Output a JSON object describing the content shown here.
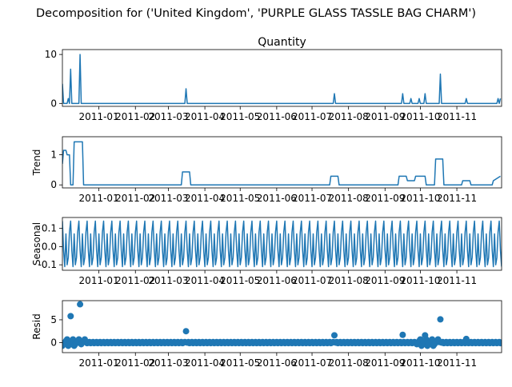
{
  "colors": {
    "series": "#1f77b4",
    "axes": "#000000",
    "background": "#ffffff"
  },
  "chart_data": {
    "type": "line",
    "title": "Decomposition for ('United Kingdom', 'PURPLE GLASS TASSLE BAG CHARM')",
    "x_range": [
      "2010-12-01",
      "2011-12-09"
    ],
    "x_tick_dates": [
      "2011-01-01",
      "2011-02-01",
      "2011-03-01",
      "2011-04-01",
      "2011-05-01",
      "2011-06-01",
      "2011-07-01",
      "2011-08-01",
      "2011-09-01",
      "2011-10-01",
      "2011-11-01"
    ],
    "x_tick_labels": [
      "2011-01",
      "2011-02",
      "2011-03",
      "2011-04",
      "2011-05",
      "2011-06",
      "2011-07",
      "2011-08",
      "2011-09",
      "2011-10",
      "2011-11"
    ],
    "panels": [
      {
        "id": "observed",
        "type": "line",
        "title": "Quantity",
        "ylabel": "",
        "ylim": [
          -0.6,
          11
        ],
        "yticks": [
          0,
          10
        ],
        "baseline": 0,
        "points": [
          [
            "2010-12-01",
            4
          ],
          [
            "2010-12-02",
            0
          ],
          [
            "2010-12-05",
            0
          ],
          [
            "2010-12-06",
            1
          ],
          [
            "2010-12-07",
            0
          ],
          [
            "2010-12-08",
            7
          ],
          [
            "2010-12-09",
            0
          ],
          [
            "2010-12-15",
            0
          ],
          [
            "2010-12-16",
            10
          ],
          [
            "2010-12-17",
            0
          ],
          [
            "2011-03-15",
            0
          ],
          [
            "2011-03-16",
            3
          ],
          [
            "2011-03-17",
            0
          ],
          [
            "2011-07-19",
            0
          ],
          [
            "2011-07-20",
            2
          ],
          [
            "2011-07-21",
            0
          ],
          [
            "2011-09-15",
            0
          ],
          [
            "2011-09-16",
            2
          ],
          [
            "2011-09-17",
            0
          ],
          [
            "2011-09-22",
            0
          ],
          [
            "2011-09-23",
            1
          ],
          [
            "2011-09-24",
            0
          ],
          [
            "2011-09-29",
            0
          ],
          [
            "2011-09-30",
            1
          ],
          [
            "2011-10-01",
            0
          ],
          [
            "2011-10-04",
            0
          ],
          [
            "2011-10-05",
            2
          ],
          [
            "2011-10-06",
            0
          ],
          [
            "2011-10-17",
            0
          ],
          [
            "2011-10-18",
            6
          ],
          [
            "2011-10-19",
            0
          ],
          [
            "2011-11-08",
            0
          ],
          [
            "2011-11-09",
            1
          ],
          [
            "2011-11-10",
            0
          ],
          [
            "2011-12-05",
            0
          ],
          [
            "2011-12-06",
            1
          ],
          [
            "2011-12-07",
            0
          ],
          [
            "2011-12-08",
            1
          ]
        ]
      },
      {
        "id": "trend",
        "type": "line",
        "title": "",
        "ylabel": "Trend",
        "ylim": [
          -0.1,
          1.6
        ],
        "yticks": [
          0,
          1
        ],
        "points": [
          [
            "2010-12-01",
            0.7
          ],
          [
            "2010-12-02",
            1.15
          ],
          [
            "2010-12-04",
            1.15
          ],
          [
            "2010-12-05",
            1.0
          ],
          [
            "2010-12-07",
            1.0
          ],
          [
            "2010-12-08",
            0
          ],
          [
            "2010-12-10",
            0
          ],
          [
            "2010-12-11",
            1.43
          ],
          [
            "2010-12-18",
            1.43
          ],
          [
            "2010-12-19",
            0
          ],
          [
            "2011-03-12",
            0
          ],
          [
            "2011-03-13",
            0.43
          ],
          [
            "2011-03-19",
            0.43
          ],
          [
            "2011-03-20",
            0
          ],
          [
            "2011-07-16",
            0
          ],
          [
            "2011-07-17",
            0.29
          ],
          [
            "2011-07-23",
            0.29
          ],
          [
            "2011-07-24",
            0
          ],
          [
            "2011-09-12",
            0
          ],
          [
            "2011-09-13",
            0.29
          ],
          [
            "2011-09-19",
            0.29
          ],
          [
            "2011-09-20",
            0.14
          ],
          [
            "2011-09-26",
            0.14
          ],
          [
            "2011-09-27",
            0.29
          ],
          [
            "2011-10-05",
            0.29
          ],
          [
            "2011-10-06",
            0
          ],
          [
            "2011-10-13",
            0
          ],
          [
            "2011-10-14",
            0.86
          ],
          [
            "2011-10-20",
            0.86
          ],
          [
            "2011-10-21",
            0
          ],
          [
            "2011-11-05",
            0
          ],
          [
            "2011-11-06",
            0.14
          ],
          [
            "2011-11-12",
            0.14
          ],
          [
            "2011-11-13",
            0
          ],
          [
            "2011-12-01",
            0
          ],
          [
            "2011-12-02",
            0.14
          ],
          [
            "2011-12-08",
            0.29
          ]
        ]
      },
      {
        "id": "seasonal",
        "type": "line",
        "title": "",
        "ylabel": "Seasonal",
        "ylim": [
          -0.13,
          0.16
        ],
        "yticks": [
          -0.1,
          0.0,
          0.1
        ],
        "period_days": 7,
        "weekly_pattern": [
          0.14,
          -0.02,
          -0.11,
          0.07,
          -0.1,
          -0.06,
          0.08
        ]
      },
      {
        "id": "resid",
        "type": "scatter",
        "title": "",
        "ylabel": "Resid",
        "ylim": [
          -2.2,
          9.2
        ],
        "yticks": [
          0,
          5
        ],
        "baseline": 0,
        "outliers": [
          [
            "2010-12-08",
            5.8
          ],
          [
            "2010-12-16",
            8.4
          ],
          [
            "2011-03-16",
            2.5
          ],
          [
            "2011-07-20",
            1.6
          ],
          [
            "2011-09-16",
            1.7
          ],
          [
            "2011-10-05",
            1.6
          ],
          [
            "2011-10-18",
            5.1
          ],
          [
            "2011-11-09",
            0.8
          ]
        ]
      }
    ]
  }
}
